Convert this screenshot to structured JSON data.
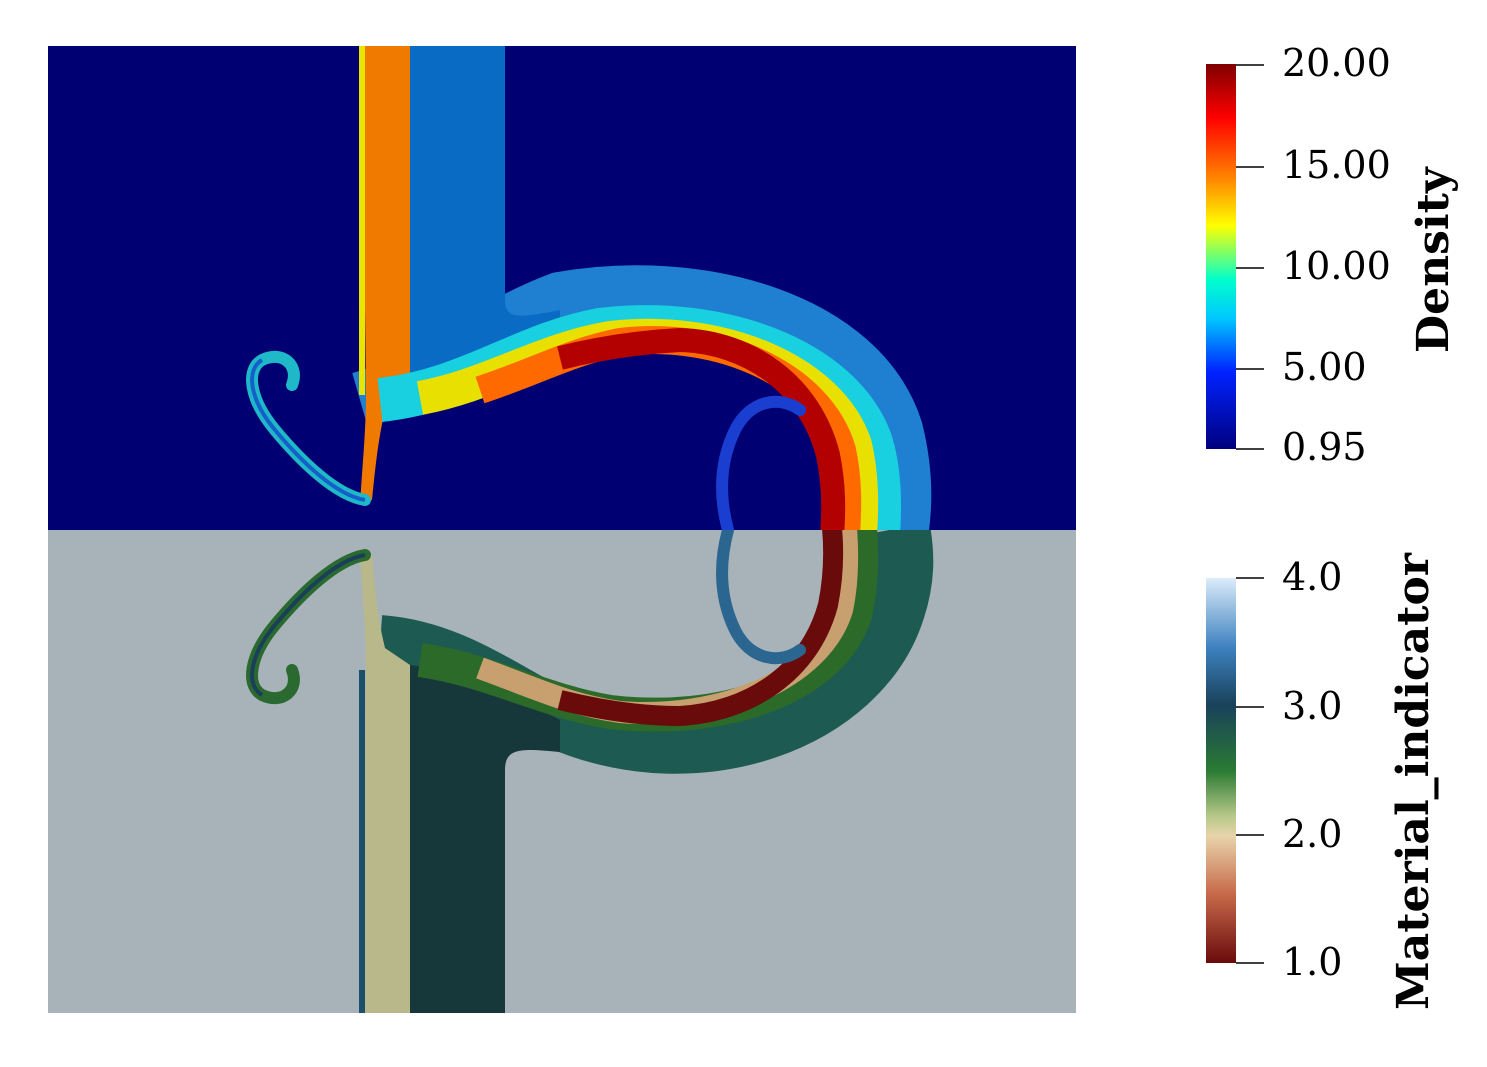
{
  "colorbars": {
    "density": {
      "title": "Density",
      "ticks": [
        "20.00",
        "15.00",
        "10.00",
        "5.00",
        "0.95"
      ],
      "colormap": [
        "#7f0000",
        "#ff0000",
        "#ff9900",
        "#ffff00",
        "#00ffff",
        "#0000ff",
        "#00007f"
      ]
    },
    "material": {
      "title": "Material_indicator",
      "ticks": [
        "4.0",
        "3.0",
        "2.0",
        "1.0"
      ],
      "colormap": [
        "#d6e8f8",
        "#2f72b0",
        "#19415a",
        "#2a7a33",
        "#b7c98a",
        "#e8d2a8",
        "#c87050",
        "#6b0c0c"
      ]
    }
  },
  "field": {
    "upper_background": "#000072",
    "lower_background": "#a7b3b8"
  }
}
